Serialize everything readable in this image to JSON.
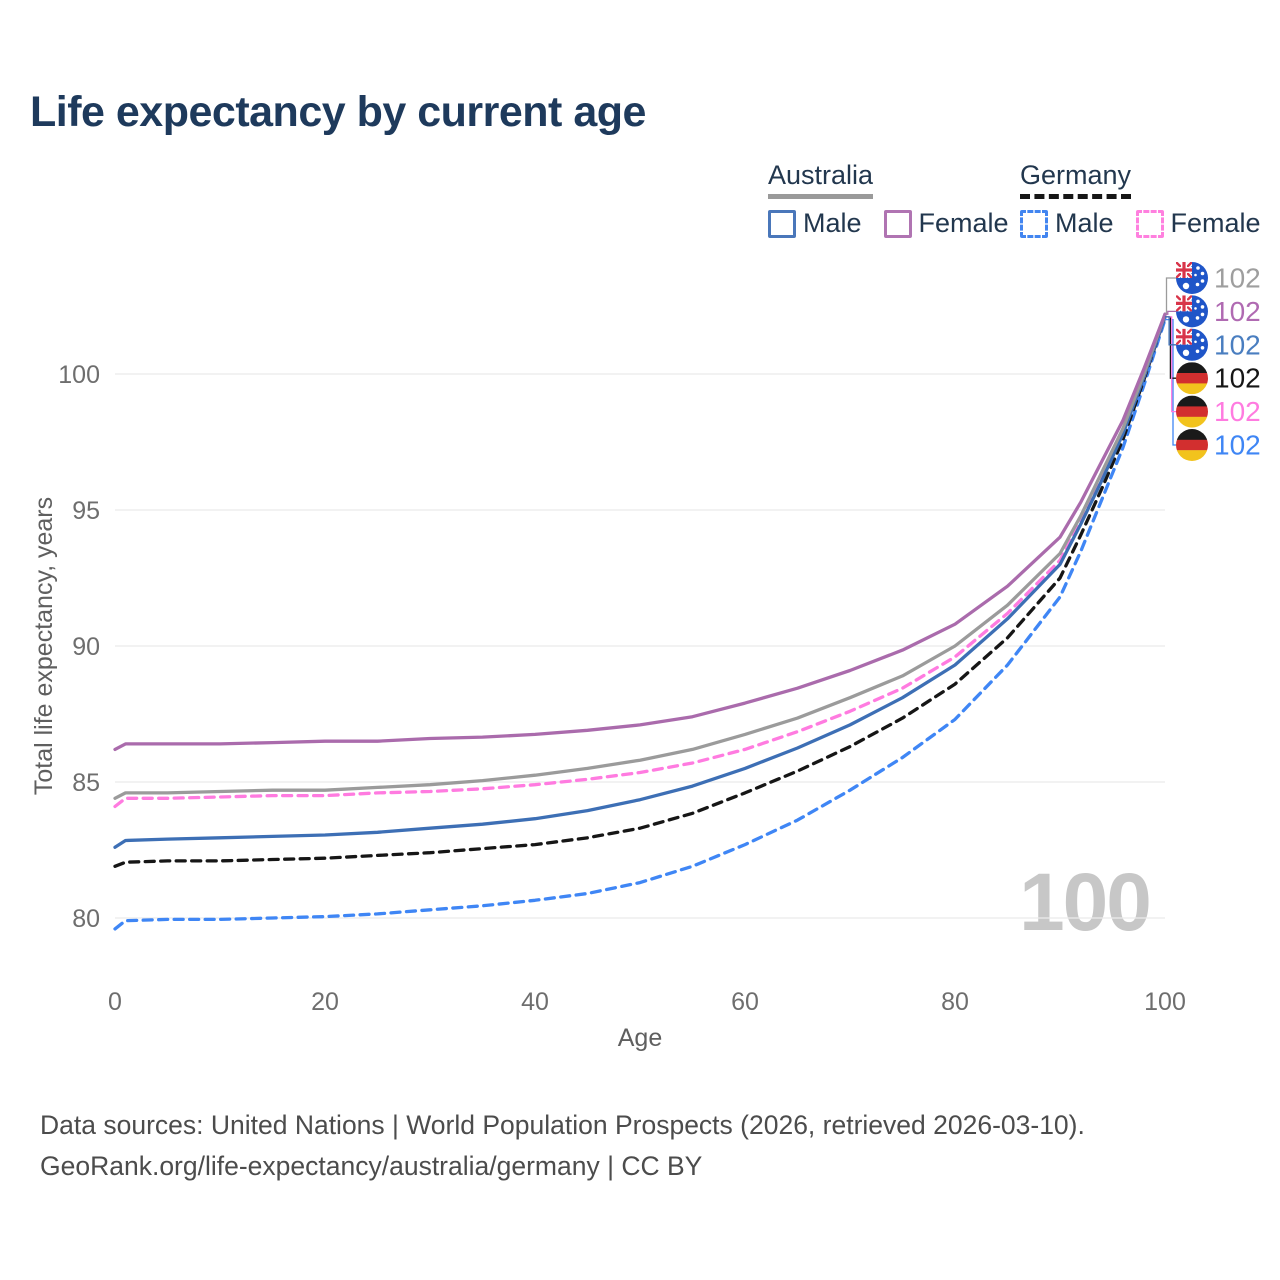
{
  "title": "Life expectancy by current age",
  "watermark": "100",
  "legend": {
    "groups": [
      {
        "country": "Australia",
        "line_style": "solid",
        "underline_color": "#9a9a9a",
        "items": [
          {
            "label": "Male",
            "color": "#4a77ba",
            "dashed": false
          },
          {
            "label": "Female",
            "color": "#b074b2",
            "dashed": false
          }
        ]
      },
      {
        "country": "Germany",
        "line_style": "dashed",
        "underline_color": "#161616",
        "items": [
          {
            "label": "Male",
            "color": "#4285f0",
            "dashed": true
          },
          {
            "label": "Female",
            "color": "#ff80df",
            "dashed": true
          }
        ]
      }
    ]
  },
  "footer": {
    "line1": "Data sources: United Nations | World Population Prospects (2026, retrieved 2026-03-10).",
    "line2": "GeoRank.org/life-expectancy/australia/germany | CC BY"
  },
  "chart_data": {
    "type": "line",
    "title": "Life expectancy by current age",
    "xlabel": "Age",
    "ylabel": "Total life expectancy, years",
    "xlim": [
      0,
      100
    ],
    "ylim": [
      79.3,
      102.6
    ],
    "xticks": [
      0,
      20,
      40,
      60,
      80,
      100
    ],
    "yticks": [
      80,
      85,
      90,
      95,
      100
    ],
    "grid": "horizontal-only",
    "legend_position": "top-right",
    "x": [
      0,
      1,
      5,
      10,
      15,
      20,
      25,
      30,
      35,
      40,
      45,
      50,
      55,
      60,
      65,
      70,
      75,
      80,
      85,
      90,
      92,
      94,
      96,
      98,
      100
    ],
    "series": [
      {
        "name": "Germany Male",
        "country": "germany",
        "sex": "male",
        "color": "#3f86f5",
        "dashed": true,
        "values": [
          79.6,
          79.9,
          79.95,
          79.95,
          80.0,
          80.05,
          80.15,
          80.3,
          80.45,
          80.65,
          80.9,
          81.3,
          81.9,
          82.7,
          83.6,
          84.7,
          85.9,
          87.3,
          89.3,
          91.8,
          93.5,
          95.4,
          97.3,
          99.6,
          102.0
        ],
        "end_label": "102",
        "end_label_color": "#3f86f5",
        "end_row": 5
      },
      {
        "name": "Germany Both sexes",
        "country": "germany",
        "sex": "both",
        "color": "#161616",
        "dashed": true,
        "values": [
          81.9,
          82.05,
          82.1,
          82.1,
          82.15,
          82.2,
          82.3,
          82.4,
          82.55,
          82.7,
          82.95,
          83.3,
          83.85,
          84.6,
          85.4,
          86.3,
          87.35,
          88.6,
          90.3,
          92.5,
          94.1,
          95.8,
          97.6,
          99.8,
          102.1
        ],
        "end_label": "102",
        "end_label_color": "#161616",
        "end_row": 3
      },
      {
        "name": "Germany Female",
        "country": "germany",
        "sex": "female",
        "color": "#ff7be0",
        "dashed": true,
        "values": [
          84.1,
          84.4,
          84.4,
          84.45,
          84.5,
          84.5,
          84.6,
          84.65,
          84.75,
          84.9,
          85.1,
          85.35,
          85.7,
          86.2,
          86.85,
          87.6,
          88.45,
          89.6,
          91.2,
          93.15,
          94.6,
          96.2,
          97.9,
          99.9,
          102.1
        ],
        "end_label": "102",
        "end_label_color": "#ff7be0",
        "end_row": 4
      },
      {
        "name": "Australia Male",
        "country": "australia",
        "sex": "male",
        "color": "#3d6fb5",
        "dashed": false,
        "values": [
          82.6,
          82.85,
          82.9,
          82.95,
          83.0,
          83.05,
          83.15,
          83.3,
          83.45,
          83.65,
          83.95,
          84.35,
          84.85,
          85.5,
          86.25,
          87.1,
          88.1,
          89.3,
          91.0,
          93.0,
          94.5,
          96.1,
          97.8,
          99.9,
          102.1
        ],
        "end_label": "102",
        "end_label_color": "#4a7ec0",
        "end_row": 2
      },
      {
        "name": "Australia Both sexes",
        "country": "australia",
        "sex": "both",
        "color": "#9b9b9b",
        "dashed": false,
        "values": [
          84.4,
          84.6,
          84.6,
          84.65,
          84.7,
          84.7,
          84.8,
          84.9,
          85.05,
          85.25,
          85.5,
          85.8,
          86.2,
          86.75,
          87.35,
          88.1,
          88.9,
          90.0,
          91.5,
          93.4,
          94.8,
          96.4,
          98.0,
          100.0,
          102.2
        ],
        "end_label": "102",
        "end_label_color": "#9e9e9e",
        "end_row": 0
      },
      {
        "name": "Australia Female",
        "country": "australia",
        "sex": "female",
        "color": "#aa6bac",
        "dashed": false,
        "values": [
          86.2,
          86.4,
          86.4,
          86.4,
          86.45,
          86.5,
          86.5,
          86.6,
          86.65,
          86.75,
          86.9,
          87.1,
          87.4,
          87.9,
          88.45,
          89.1,
          89.85,
          90.8,
          92.2,
          94.0,
          95.3,
          96.8,
          98.3,
          100.2,
          102.2
        ],
        "end_label": "102",
        "end_label_color": "#b06ab2",
        "end_row": 1
      }
    ],
    "colors": {
      "australia_flag_blue": "#1f55c8",
      "flag_red": "#d8354a",
      "germany_black": "#1a1a1a",
      "germany_red": "#d22f2f",
      "germany_gold": "#f2c31d",
      "gridline": "#ebebeb",
      "tick_text": "#6e6e6e"
    }
  }
}
